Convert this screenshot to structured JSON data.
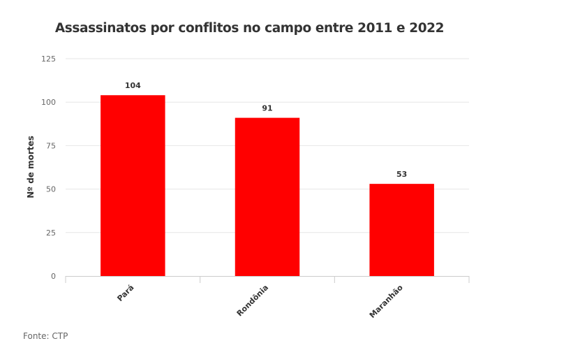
{
  "chart_data": {
    "type": "bar",
    "title": "Assassinatos por conflitos no campo entre 2011 e 2022",
    "xlabel": "",
    "ylabel": "Nº de mortes",
    "categories": [
      "Pará",
      "Rondônia",
      "Maranhão"
    ],
    "values": [
      104,
      91,
      53
    ],
    "ylim": [
      0,
      125
    ],
    "yticks": [
      0,
      25,
      50,
      75,
      100,
      125
    ],
    "grid": true,
    "legend": "none",
    "bar_color": "#ff0000",
    "source": "Fonte: CTP"
  }
}
